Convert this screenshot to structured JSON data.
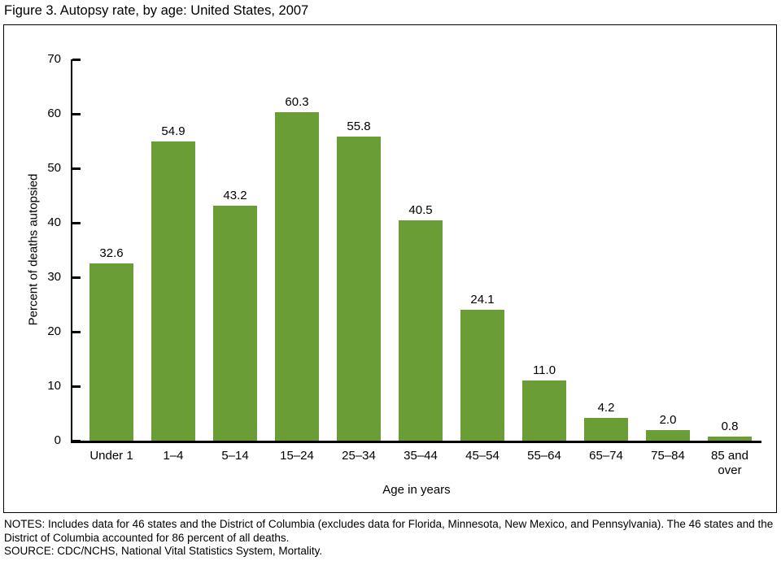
{
  "page": {
    "title": "Figure 3. Autopsy rate, by age: United States, 2007",
    "notes": "NOTES: Includes data for 46 states and the District of Columbia (excludes data for Florida, Minnesota, New Mexico, and Pennsylvania). The 46 states and the District of Columbia accounted for 86 percent of all deaths.",
    "source": "SOURCE: CDC/NCHS, National Vital Statistics System, Mortality."
  },
  "chart_data": {
    "type": "bar",
    "title": "Figure 3. Autopsy rate, by age: United States, 2007",
    "categories": [
      "Under 1",
      "1–4",
      "5–14",
      "15–24",
      "25–34",
      "35–44",
      "45–54",
      "55–64",
      "65–74",
      "75–84",
      "85 and over"
    ],
    "values": [
      32.6,
      54.9,
      43.2,
      60.3,
      55.8,
      40.5,
      24.1,
      11.0,
      4.2,
      2.0,
      0.8
    ],
    "value_label_decimals": 1,
    "xlabel": "Age in years",
    "ylabel": "Percent of deaths autopsied",
    "ylim": [
      0,
      70
    ],
    "yticks": [
      0,
      10,
      20,
      30,
      40,
      50,
      60,
      70
    ],
    "bar_color": "#6a9d35",
    "axis_color": "#000000",
    "grid": false,
    "legend": null
  }
}
